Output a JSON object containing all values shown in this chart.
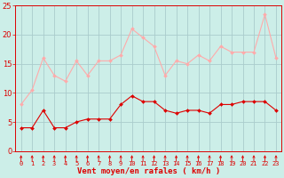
{
  "x": [
    0,
    1,
    2,
    3,
    4,
    5,
    6,
    7,
    8,
    9,
    10,
    11,
    12,
    13,
    14,
    15,
    16,
    17,
    18,
    19,
    20,
    21,
    22,
    23
  ],
  "wind_avg": [
    4,
    4,
    7,
    4,
    4,
    5,
    5.5,
    5.5,
    5.5,
    8,
    9.5,
    8.5,
    8.5,
    7,
    6.5,
    7,
    7,
    6.5,
    8,
    8,
    8.5,
    8.5,
    8.5,
    7
  ],
  "wind_gust": [
    8,
    10.5,
    16,
    13,
    12,
    15.5,
    13,
    15.5,
    15.5,
    16.5,
    21,
    19.5,
    18,
    13,
    15.5,
    15,
    16.5,
    15.5,
    18,
    17,
    17,
    17,
    23.5,
    16
  ],
  "avg_color": "#dd0000",
  "gust_color": "#ffaaaa",
  "bg_color": "#cceee8",
  "grid_color": "#aacccc",
  "xlabel": "Vent moyen/en rafales ( km/h )",
  "xlabel_color": "#dd0000",
  "tick_color": "#dd0000",
  "arrow_color": "#dd0000",
  "ylim": [
    0,
    25
  ],
  "yticks": [
    0,
    5,
    10,
    15,
    20,
    25
  ]
}
